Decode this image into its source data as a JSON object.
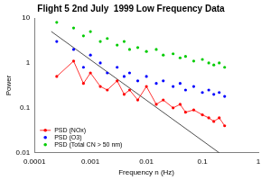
{
  "chart_data": {
    "type": "scatter",
    "title": "Flight 5 2nd July  1999 Low Frequency Data",
    "x_label": "Frequency n (Hz)",
    "y_label": "Power",
    "log": true,
    "grid": false,
    "legend": "bottom-left",
    "xlim": [
      0.0001,
      1
    ],
    "xticks": [
      0.0001,
      0.001,
      0.01,
      0.1,
      1
    ],
    "ylim": [
      0.01,
      10
    ],
    "yticks": [
      0.01,
      0.1,
      1,
      10
    ],
    "x": [
      0.00025,
      0.0005,
      0.00075,
      0.001,
      0.0015,
      0.002,
      0.003,
      0.004,
      0.005,
      0.007,
      0.01,
      0.015,
      0.02,
      0.03,
      0.04,
      0.05,
      0.07,
      0.1,
      0.13,
      0.16,
      0.2,
      0.25
    ],
    "series": [
      {
        "name": "PSD (NOx)",
        "color": "#ff0000",
        "marker": "circle",
        "line_style": "solid",
        "values": [
          0.5,
          1.1,
          0.35,
          0.6,
          0.3,
          0.25,
          0.4,
          0.2,
          0.25,
          0.15,
          0.3,
          0.12,
          0.15,
          0.1,
          0.12,
          0.08,
          0.09,
          0.07,
          0.06,
          0.05,
          0.06,
          0.04
        ]
      },
      {
        "name": "PSD (O3)",
        "color": "#0000ff",
        "marker": "circle",
        "line_style": "none",
        "values": [
          3,
          2,
          0.8,
          1.5,
          1,
          0.6,
          0.8,
          0.5,
          0.6,
          0.4,
          0.5,
          0.35,
          0.4,
          0.3,
          0.35,
          0.25,
          0.3,
          0.22,
          0.25,
          0.2,
          0.22,
          0.18
        ]
      },
      {
        "name": "PSD (Total CN > 50 nm)",
        "color": "#00cc00",
        "marker": "circle",
        "line_style": "none",
        "values": [
          8,
          6,
          4,
          5,
          3,
          3.5,
          2.5,
          3,
          2,
          2.2,
          1.8,
          2,
          1.5,
          1.6,
          1.3,
          1.4,
          1.1,
          1.2,
          1,
          0.9,
          1,
          0.8
        ]
      },
      {
        "color": "#000000",
        "marker": "none",
        "line_style": "solid",
        "x": [
          0.0002,
          0.2
        ],
        "values": [
          5,
          0.01
        ]
      }
    ]
  }
}
